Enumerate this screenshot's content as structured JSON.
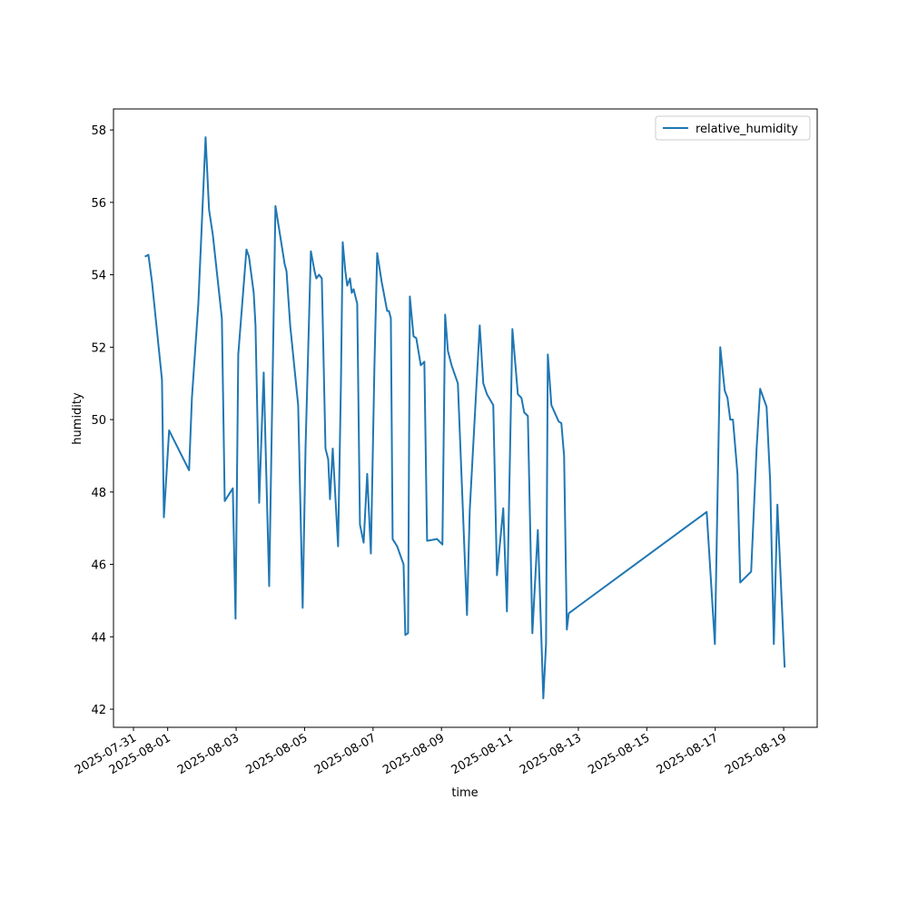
{
  "chart_data": {
    "type": "line",
    "xlabel": "time",
    "ylabel": "humidity",
    "x": [
      "2025-07-31 08:00",
      "2025-07-31 10:30",
      "2025-07-31 13:00",
      "2025-07-31 20:00",
      "2025-07-31 21:20",
      "2025-08-01 01:00",
      "2025-08-01 15:00",
      "2025-08-01 17:00",
      "2025-08-01 21:30",
      "2025-08-02 02:35",
      "2025-08-02 05:00",
      "2025-08-02 07:40",
      "2025-08-02 14:00",
      "2025-08-02 16:00",
      "2025-08-02 21:40",
      "2025-08-02 23:35",
      "2025-08-03 01:30",
      "2025-08-03 07:15",
      "2025-08-03 09:00",
      "2025-08-03 12:20",
      "2025-08-03 13:35",
      "2025-08-03 16:10",
      "2025-08-03 19:20",
      "2025-08-03 23:10",
      "2025-08-04 03:35",
      "2025-08-04 08:00",
      "2025-08-04 10:00",
      "2025-08-04 11:20",
      "2025-08-04 13:55",
      "2025-08-04 19:30",
      "2025-08-04 22:40",
      "2025-08-05 00:40",
      "2025-08-05 04:25",
      "2025-08-05 07:00",
      "2025-08-05 08:15",
      "2025-08-05 10:10",
      "2025-08-05 12:05",
      "2025-08-05 14:40",
      "2025-08-05 16:35",
      "2025-08-05 17:50",
      "2025-08-05 19:45",
      "2025-08-05 23:30",
      "2025-08-06 01:30",
      "2025-08-06 02:45",
      "2025-08-06 04:35",
      "2025-08-06 05:55",
      "2025-08-06 07:50",
      "2025-08-06 09:05",
      "2025-08-06 10:25",
      "2025-08-06 12:55",
      "2025-08-06 14:50",
      "2025-08-06 17:25",
      "2025-08-06 19:55",
      "2025-08-06 22:30",
      "2025-08-07 01:00",
      "2025-08-07 02:55",
      "2025-08-07 06:05",
      "2025-08-07 09:55",
      "2025-08-07 11:10",
      "2025-08-07 12:30",
      "2025-08-07 13:45",
      "2025-08-07 16:55",
      "2025-08-07 21:25",
      "2025-08-07 22:40",
      "2025-08-08 00:35",
      "2025-08-08 01:50",
      "2025-08-08 04:25",
      "2025-08-08 06:20",
      "2025-08-08 09:30",
      "2025-08-08 12:00",
      "2025-08-08 13:55",
      "2025-08-08 20:55",
      "2025-08-09 00:40",
      "2025-08-09 02:35",
      "2025-08-09 04:30",
      "2025-08-09 07:05",
      "2025-08-09 11:30",
      "2025-08-09 17:55",
      "2025-08-09 19:50",
      "2025-08-10 02:50",
      "2025-08-10 05:20",
      "2025-08-10 07:55",
      "2025-08-10 12:20",
      "2025-08-10 14:55",
      "2025-08-10 19:20",
      "2025-08-10 21:55",
      "2025-08-11 01:45",
      "2025-08-11 05:35",
      "2025-08-11 08:05",
      "2025-08-11 10:00",
      "2025-08-11 12:35",
      "2025-08-11 15:45",
      "2025-08-11 19:35",
      "2025-08-11 23:25",
      "2025-08-12 01:20",
      "2025-08-12 02:35",
      "2025-08-12 05:05",
      "2025-08-12 10:10",
      "2025-08-12 12:05",
      "2025-08-12 14:00",
      "2025-08-12 15:55",
      "2025-08-12 17:15",
      "2025-08-16 18:00",
      "2025-08-16 23:45",
      "2025-08-17 03:30",
      "2025-08-17 06:40",
      "2025-08-17 08:35",
      "2025-08-17 10:30",
      "2025-08-17 12:25",
      "2025-08-17 15:35",
      "2025-08-17 17:30",
      "2025-08-18 01:10",
      "2025-08-18 05:00",
      "2025-08-18 07:30",
      "2025-08-18 12:00",
      "2025-08-18 14:30",
      "2025-08-18 17:05",
      "2025-08-18 19:35",
      "2025-08-18 21:35",
      "2025-08-19 00:40"
    ],
    "series": [
      {
        "name": "relative_humidity",
        "color": "#1f77b4",
        "values": [
          54.5,
          54.55,
          53.8,
          51.1,
          47.3,
          49.7,
          48.6,
          50.6,
          53.2,
          57.8,
          55.8,
          55.1,
          52.8,
          47.75,
          48.1,
          44.5,
          51.8,
          54.7,
          54.5,
          53.5,
          52.6,
          47.7,
          51.3,
          45.4,
          55.9,
          54.8,
          54.3,
          54.1,
          52.6,
          50.4,
          44.8,
          49.2,
          54.65,
          54.1,
          53.9,
          54.0,
          53.9,
          49.2,
          48.9,
          47.8,
          49.2,
          46.5,
          51.0,
          54.9,
          54.1,
          53.7,
          53.9,
          53.5,
          53.6,
          53.2,
          47.1,
          46.6,
          48.5,
          46.3,
          51.5,
          54.6,
          53.8,
          53.0,
          53.0,
          52.8,
          46.7,
          46.5,
          46.0,
          44.05,
          44.1,
          53.4,
          52.3,
          52.25,
          51.5,
          51.6,
          46.65,
          46.7,
          46.55,
          52.9,
          51.9,
          51.5,
          51.0,
          44.6,
          47.5,
          52.6,
          51.0,
          50.7,
          50.4,
          45.7,
          47.55,
          44.7,
          52.5,
          50.7,
          50.6,
          50.2,
          50.1,
          44.1,
          46.95,
          42.3,
          43.8,
          51.8,
          50.4,
          49.95,
          49.9,
          49.0,
          44.2,
          44.65,
          47.45,
          43.8,
          52.0,
          50.8,
          50.6,
          50.0,
          50.0,
          48.5,
          45.5,
          45.8,
          49.2,
          50.85,
          50.35,
          48.3,
          43.8,
          47.65,
          45.9,
          43.15
        ]
      }
    ],
    "xlim": [
      "2025-07-30 10:00",
      "2025-08-19 23:30"
    ],
    "xticks": [
      "2025-07-31",
      "2025-08-01",
      "2025-08-03",
      "2025-08-05",
      "2025-08-07",
      "2025-08-09",
      "2025-08-11",
      "2025-08-13",
      "2025-08-15",
      "2025-08-17",
      "2025-08-19"
    ],
    "ylim": [
      41.5,
      58.58
    ],
    "yticks": [
      42,
      44,
      46,
      48,
      50,
      52,
      54,
      56,
      58
    ],
    "legend": "upper right",
    "grid": false
  }
}
